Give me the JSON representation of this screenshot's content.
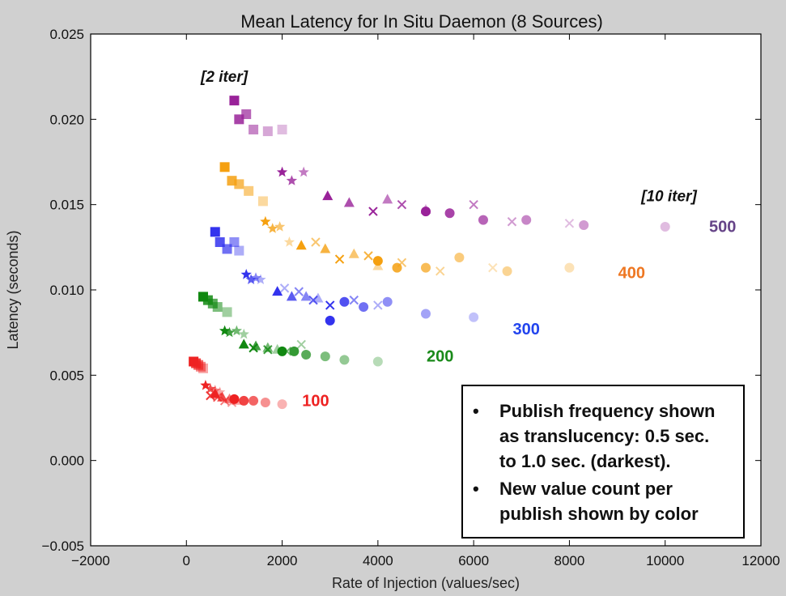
{
  "chart_data": {
    "type": "scatter",
    "title": "Mean Latency for In Situ Daemon (8 Sources)",
    "xlabel": "Rate of Injection (values/sec)",
    "ylabel": "Latency (seconds)",
    "xlim": [
      -2000,
      12000
    ],
    "ylim": [
      -0.005,
      0.025
    ],
    "xticks": [
      "−2000",
      "0",
      "2000",
      "4000",
      "6000",
      "8000",
      "10000",
      "12000"
    ],
    "yticks": [
      "−0.005",
      "0.000",
      "0.005",
      "0.010",
      "0.015",
      "0.020",
      "0.025"
    ],
    "grid": false,
    "colors": {
      "100": "#ee2222",
      "200": "#118811",
      "300": "#3333ee",
      "400": "#f5a010",
      "500": "#992299"
    },
    "label_colors": {
      "100": "#ee2222",
      "200": "#1a8a1a",
      "300": "#2244ee",
      "400": "#ee7722",
      "500": "#664488"
    },
    "series": [
      {
        "name": "100",
        "marker": "square",
        "points": [
          [
            150,
            0.0058,
            1.0
          ],
          [
            200,
            0.0057,
            0.85
          ],
          [
            250,
            0.0056,
            0.7
          ],
          [
            300,
            0.0055,
            0.55
          ],
          [
            350,
            0.0054,
            0.4
          ]
        ]
      },
      {
        "name": "100",
        "marker": "star",
        "points": [
          [
            400,
            0.0044,
            1.0
          ],
          [
            500,
            0.0042,
            0.8
          ],
          [
            600,
            0.0041,
            0.6
          ],
          [
            700,
            0.004,
            0.4
          ]
        ]
      },
      {
        "name": "100",
        "marker": "x",
        "points": [
          [
            500,
            0.0038,
            0.9
          ],
          [
            650,
            0.0037,
            0.75
          ],
          [
            800,
            0.0035,
            0.6
          ],
          [
            950,
            0.0034,
            0.45
          ]
        ]
      },
      {
        "name": "100",
        "marker": "triangle",
        "points": [
          [
            600,
            0.0039,
            1.0
          ],
          [
            750,
            0.0037,
            0.8
          ],
          [
            900,
            0.0036,
            0.6
          ],
          [
            1050,
            0.0035,
            0.4
          ]
        ]
      },
      {
        "name": "100",
        "marker": "circle",
        "points": [
          [
            1000,
            0.0036,
            1.0
          ],
          [
            1200,
            0.0035,
            0.85
          ],
          [
            1400,
            0.0035,
            0.7
          ],
          [
            1650,
            0.0034,
            0.5
          ],
          [
            2000,
            0.0033,
            0.35
          ]
        ]
      },
      {
        "name": "200",
        "marker": "square",
        "points": [
          [
            350,
            0.0096,
            1.0
          ],
          [
            450,
            0.0094,
            0.85
          ],
          [
            550,
            0.0092,
            0.7
          ],
          [
            650,
            0.009,
            0.55
          ],
          [
            850,
            0.0087,
            0.4
          ]
        ]
      },
      {
        "name": "200",
        "marker": "star",
        "points": [
          [
            800,
            0.0076,
            1.0
          ],
          [
            900,
            0.0075,
            0.8
          ],
          [
            1050,
            0.0076,
            0.6
          ],
          [
            1200,
            0.0074,
            0.4
          ]
        ]
      },
      {
        "name": "200",
        "marker": "triangle",
        "points": [
          [
            1200,
            0.0068,
            1.0
          ],
          [
            1450,
            0.0067,
            0.8
          ],
          [
            1700,
            0.0066,
            0.6
          ],
          [
            1900,
            0.0065,
            0.4
          ]
        ]
      },
      {
        "name": "200",
        "marker": "x",
        "points": [
          [
            1400,
            0.0066,
            1.0
          ],
          [
            1700,
            0.0065,
            0.8
          ],
          [
            2100,
            0.0064,
            0.6
          ],
          [
            2400,
            0.0068,
            0.4
          ]
        ]
      },
      {
        "name": "200",
        "marker": "circle",
        "points": [
          [
            2000,
            0.0064,
            1.0
          ],
          [
            2250,
            0.0064,
            0.85
          ],
          [
            2500,
            0.0062,
            0.7
          ],
          [
            2900,
            0.0061,
            0.55
          ],
          [
            3300,
            0.0059,
            0.45
          ],
          [
            4000,
            0.0058,
            0.3
          ]
        ]
      },
      {
        "name": "300",
        "marker": "square",
        "points": [
          [
            600,
            0.0134,
            1.0
          ],
          [
            700,
            0.0128,
            0.85
          ],
          [
            850,
            0.0124,
            0.7
          ],
          [
            1000,
            0.0128,
            0.55
          ],
          [
            1100,
            0.0123,
            0.4
          ]
        ]
      },
      {
        "name": "300",
        "marker": "star",
        "points": [
          [
            1250,
            0.0109,
            1.0
          ],
          [
            1350,
            0.0106,
            0.8
          ],
          [
            1450,
            0.0107,
            0.6
          ],
          [
            1550,
            0.0106,
            0.4
          ]
        ]
      },
      {
        "name": "300",
        "marker": "triangle",
        "points": [
          [
            1900,
            0.0099,
            1.0
          ],
          [
            2200,
            0.0096,
            0.8
          ],
          [
            2500,
            0.0096,
            0.6
          ],
          [
            2750,
            0.0095,
            0.4
          ]
        ]
      },
      {
        "name": "300",
        "marker": "x",
        "points": [
          [
            2050,
            0.0101,
            0.4
          ],
          [
            2350,
            0.0099,
            0.6
          ],
          [
            2650,
            0.0094,
            0.8
          ],
          [
            3000,
            0.0091,
            1.0
          ],
          [
            3500,
            0.0094,
            0.6
          ],
          [
            4000,
            0.0091,
            0.4
          ]
        ]
      },
      {
        "name": "300",
        "marker": "circle",
        "points": [
          [
            3000,
            0.0082,
            1.0
          ],
          [
            3300,
            0.0093,
            0.85
          ],
          [
            3700,
            0.009,
            0.7
          ],
          [
            4200,
            0.0093,
            0.55
          ],
          [
            5000,
            0.0086,
            0.45
          ],
          [
            6000,
            0.0084,
            0.3
          ]
        ]
      },
      {
        "name": "400",
        "marker": "square",
        "points": [
          [
            800,
            0.0172,
            1.0
          ],
          [
            950,
            0.0164,
            0.85
          ],
          [
            1100,
            0.0162,
            0.7
          ],
          [
            1300,
            0.0158,
            0.55
          ],
          [
            1600,
            0.0152,
            0.4
          ]
        ]
      },
      {
        "name": "400",
        "marker": "star",
        "points": [
          [
            1650,
            0.014,
            1.0
          ],
          [
            1800,
            0.0136,
            0.8
          ],
          [
            1950,
            0.0137,
            0.6
          ],
          [
            2150,
            0.0128,
            0.4
          ]
        ]
      },
      {
        "name": "400",
        "marker": "triangle",
        "points": [
          [
            2400,
            0.0126,
            1.0
          ],
          [
            2900,
            0.0124,
            0.8
          ],
          [
            3500,
            0.0121,
            0.6
          ],
          [
            4000,
            0.0114,
            0.4
          ]
        ]
      },
      {
        "name": "400",
        "marker": "x",
        "points": [
          [
            2700,
            0.0128,
            0.6
          ],
          [
            3200,
            0.0118,
            1.0
          ],
          [
            3800,
            0.012,
            0.8
          ],
          [
            4500,
            0.0116,
            0.6
          ],
          [
            5300,
            0.0111,
            0.45
          ],
          [
            6400,
            0.0113,
            0.3
          ]
        ]
      },
      {
        "name": "400",
        "marker": "circle",
        "points": [
          [
            4000,
            0.0117,
            1.0
          ],
          [
            4400,
            0.0113,
            0.85
          ],
          [
            5000,
            0.0113,
            0.7
          ],
          [
            5700,
            0.0119,
            0.55
          ],
          [
            6700,
            0.0111,
            0.45
          ],
          [
            8000,
            0.0113,
            0.3
          ]
        ]
      },
      {
        "name": "500",
        "marker": "square",
        "points": [
          [
            1000,
            0.0211,
            1.0
          ],
          [
            1100,
            0.02,
            0.85
          ],
          [
            1250,
            0.0203,
            0.7
          ],
          [
            1400,
            0.0194,
            0.55
          ],
          [
            1700,
            0.0193,
            0.4
          ],
          [
            2000,
            0.0194,
            0.3
          ]
        ]
      },
      {
        "name": "500",
        "marker": "star",
        "points": [
          [
            2000,
            0.0169,
            1.0
          ],
          [
            2200,
            0.0164,
            0.8
          ],
          [
            2450,
            0.0169,
            0.6
          ]
        ]
      },
      {
        "name": "500",
        "marker": "triangle",
        "points": [
          [
            2950,
            0.0155,
            1.0
          ],
          [
            3400,
            0.0151,
            0.8
          ],
          [
            4200,
            0.0153,
            0.6
          ],
          [
            5000,
            0.0147,
            0.4
          ]
        ]
      },
      {
        "name": "500",
        "marker": "x",
        "points": [
          [
            3900,
            0.0146,
            1.0
          ],
          [
            4500,
            0.015,
            0.8
          ],
          [
            6000,
            0.015,
            0.6
          ],
          [
            6800,
            0.014,
            0.45
          ],
          [
            8000,
            0.0139,
            0.3
          ]
        ]
      },
      {
        "name": "500",
        "marker": "circle",
        "points": [
          [
            5000,
            0.0146,
            1.0
          ],
          [
            5500,
            0.0145,
            0.85
          ],
          [
            6200,
            0.0141,
            0.7
          ],
          [
            7100,
            0.0141,
            0.55
          ],
          [
            8300,
            0.0138,
            0.45
          ],
          [
            10000,
            0.0137,
            0.3
          ]
        ]
      }
    ],
    "annotations": [
      {
        "text": "[2 iter]",
        "x": 300,
        "y": 0.0222
      },
      {
        "text": "[10 iter]",
        "x": 9500,
        "y": 0.0152
      },
      {
        "text": "100",
        "x": 2700,
        "y": 0.0032,
        "series": "100"
      },
      {
        "text": "200",
        "x": 5300,
        "y": 0.0058,
        "series": "200"
      },
      {
        "text": "300",
        "x": 7100,
        "y": 0.0074,
        "series": "300"
      },
      {
        "text": "400",
        "x": 9300,
        "y": 0.0107,
        "series": "400"
      },
      {
        "text": "500",
        "x": 11200,
        "y": 0.0134,
        "series": "500"
      }
    ],
    "legend": {
      "placement": "bottom-right",
      "bullet": "•",
      "items": [
        {
          "lines": [
            "Publish frequency shown",
            "as translucency: 0.5 sec.",
            "to 1.0 sec. (darkest)."
          ]
        },
        {
          "lines": [
            "New value count per",
            "publish shown by color"
          ]
        }
      ]
    }
  }
}
